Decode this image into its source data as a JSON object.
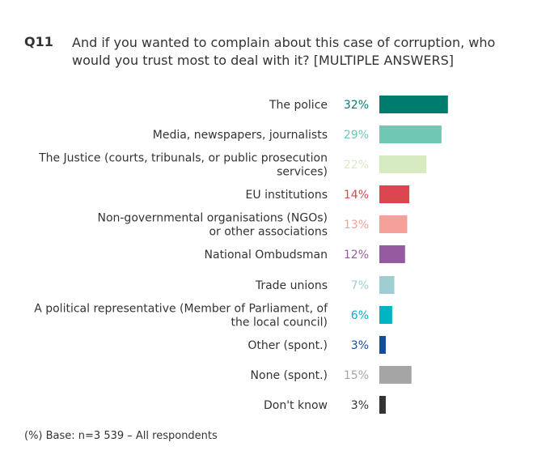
{
  "question": {
    "label": "Q11",
    "text": "And if you wanted to complain about this case of corruption, who would you trust most to deal with it? [MULTIPLE ANSWERS]"
  },
  "chart_data": {
    "type": "bar",
    "orientation": "horizontal",
    "categories": [
      [
        "The police"
      ],
      [
        "Media, newspapers, journalists"
      ],
      [
        "The Justice (courts, tribunals, or public prosecution",
        "services)"
      ],
      [
        "EU institutions"
      ],
      [
        "Non-governmental organisations (NGOs)",
        "or other associations"
      ],
      [
        "National Ombudsman"
      ],
      [
        "Trade unions"
      ],
      [
        "A political representative (Member of Parliament, of",
        "the local council)"
      ],
      [
        "Other (spont.)"
      ],
      [
        "None (spont.)"
      ],
      [
        "Don't know"
      ]
    ],
    "values": [
      32,
      29,
      22,
      14,
      13,
      12,
      7,
      6,
      3,
      15,
      3
    ],
    "value_labels": [
      "32%",
      "29%",
      "22%",
      "14%",
      "13%",
      "12%",
      "7%",
      "6%",
      "3%",
      "15%",
      "3%"
    ],
    "colors": [
      "#007c6e",
      "#6ec8b4",
      "#d7ebc3",
      "#dc4650",
      "#f5a09b",
      "#965aa0",
      "#a0cdd2",
      "#00b4c3",
      "#144b9b",
      "#a5a5a5",
      "#333333"
    ],
    "value_label_colors": [
      "#007c6e",
      "#6ec8b4",
      "#d7ebc3",
      "#dc4650",
      "#f5a09b",
      "#965aa0",
      "#a0cdd2",
      "#00b4c3",
      "#144b9b",
      "#a5a5a5",
      "#333333"
    ]
  },
  "footnote": "(%) Base: n=3 539 – All respondents"
}
